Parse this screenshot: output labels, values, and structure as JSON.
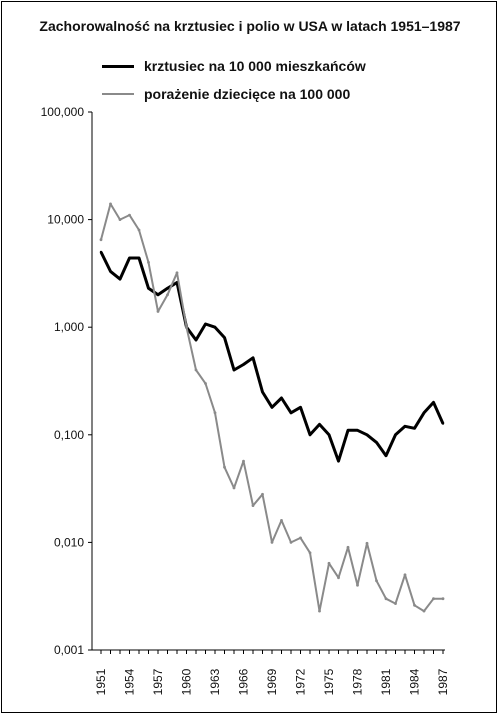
{
  "chart_data": {
    "type": "line",
    "title": "Zachorowalność na krztusiec i polio w USA w latach 1951–1987",
    "xlabel": "",
    "ylabel": "",
    "y_scale": "log",
    "ylim": [
      0.001,
      100
    ],
    "yticks": [
      100,
      10,
      1,
      0.1,
      0.01,
      0.001
    ],
    "ytick_labels": [
      "100,000",
      "10,000",
      "1,000",
      "0,100",
      "0,010",
      "0,001"
    ],
    "xlim": [
      1951,
      1987
    ],
    "xticks": [
      1951,
      1954,
      1957,
      1960,
      1963,
      1966,
      1969,
      1972,
      1975,
      1978,
      1981,
      1984,
      1987
    ],
    "xtick_labels": [
      "1951",
      "1954",
      "1957",
      "1960",
      "1963",
      "1966",
      "1969",
      "1972",
      "1975",
      "1978",
      "1981",
      "1984",
      "1987"
    ],
    "grid": false,
    "legend_position": "top-left",
    "x": [
      1951,
      1952,
      1953,
      1954,
      1955,
      1956,
      1957,
      1958,
      1959,
      1960,
      1961,
      1962,
      1963,
      1964,
      1965,
      1966,
      1967,
      1968,
      1969,
      1970,
      1971,
      1972,
      1973,
      1974,
      1975,
      1976,
      1977,
      1978,
      1979,
      1980,
      1981,
      1982,
      1983,
      1984,
      1985,
      1986,
      1987
    ],
    "series": [
      {
        "name": "krztusiec na 10 000 mieszkańców",
        "color": "#000000",
        "values": [
          5.0,
          3.3,
          2.8,
          4.4,
          4.4,
          2.3,
          2.0,
          2.3,
          2.6,
          1.0,
          0.76,
          1.07,
          1.0,
          0.8,
          0.4,
          0.45,
          0.52,
          0.25,
          0.18,
          0.22,
          0.16,
          0.18,
          0.1,
          0.125,
          0.1,
          0.057,
          0.11,
          0.11,
          0.1,
          0.085,
          0.064,
          0.1,
          0.12,
          0.115,
          0.16,
          0.2,
          0.127
        ]
      },
      {
        "name": "porażenie dziecięce na 100 000",
        "color": "#8a8a8a",
        "values": [
          6.5,
          14.0,
          10.0,
          11.0,
          8.0,
          4.0,
          1.4,
          2.0,
          3.2,
          1.0,
          0.4,
          0.3,
          0.16,
          0.05,
          0.032,
          0.057,
          0.022,
          0.028,
          0.01,
          0.016,
          0.01,
          0.011,
          0.008,
          0.0023,
          0.0064,
          0.0047,
          0.009,
          0.004,
          0.0098,
          0.0044,
          0.003,
          0.0027,
          0.005,
          0.0026,
          0.0023,
          0.003,
          0.003
        ]
      }
    ]
  }
}
